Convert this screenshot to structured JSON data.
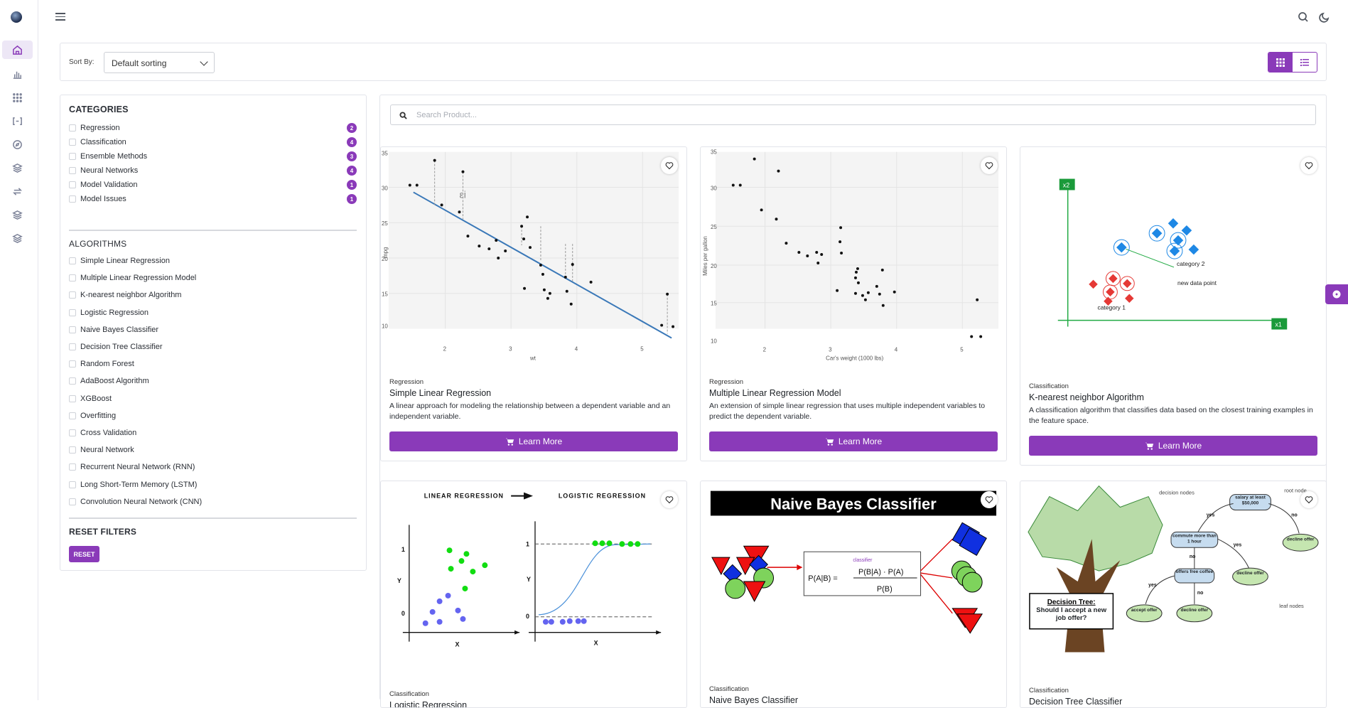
{
  "sort": {
    "label": "Sort By:",
    "value": "Default sorting"
  },
  "filters": {
    "categories_title": "CATEGORIES",
    "categories": [
      {
        "label": "Regression",
        "count": "2"
      },
      {
        "label": "Classification",
        "count": "4"
      },
      {
        "label": "Ensemble Methods",
        "count": "3"
      },
      {
        "label": "Neural Networks",
        "count": "4"
      },
      {
        "label": "Model Validation",
        "count": "1"
      },
      {
        "label": "Model Issues",
        "count": "1"
      }
    ],
    "algorithms_title": "ALGORITHMS",
    "algorithms": [
      "Simple Linear Regression",
      "Multiple Linear Regression Model",
      "K-nearest neighbor Algorithm",
      "Logistic Regression",
      "Naive Bayes Classifier",
      "Decision Tree Classifier",
      "Random Forest",
      "AdaBoost Algorithm",
      "XGBoost",
      "Overfitting",
      "Cross Validation",
      "Neural Network",
      "Recurrent Neural Network (RNN)",
      "Long Short-Term Memory (LSTM)",
      "Convolution Neural Network (CNN)"
    ],
    "reset_title": "RESET FILTERS",
    "reset_label": "RESET"
  },
  "search": {
    "placeholder": "Search Product..."
  },
  "products": [
    {
      "category": "Regression",
      "title": "Simple Linear Regression",
      "description": "A linear approach for modeling the relationship between a dependent variable and an independent variable.",
      "button": "Learn More",
      "figure": {
        "xlabel": "wt",
        "ylabel": "mpg",
        "annotation": "εi",
        "yticks": [
          "35",
          "30",
          "25",
          "20",
          "15",
          "10"
        ],
        "xticks": [
          "2",
          "3",
          "4",
          "5"
        ]
      }
    },
    {
      "category": "Regression",
      "title": "Multiple Linear Regression Model",
      "description": "An extension of simple linear regression that uses multiple independent variables to predict the dependent variable.",
      "button": "Learn More",
      "figure": {
        "xlabel": "Car's weight (1000 lbs)",
        "ylabel": "Miles per gallon",
        "yticks": [
          "35",
          "30",
          "25",
          "20",
          "15",
          "10"
        ],
        "xticks": [
          "2",
          "3",
          "4",
          "5"
        ]
      }
    },
    {
      "category": "Classification",
      "title": "K-nearest neighbor Algorithm",
      "description": "A classification algorithm that classifies data based on the closest training examples in the feature space.",
      "button": "Learn More",
      "figure": {
        "x2": "x2",
        "x1": "x1",
        "cat1": "category 1",
        "cat2": "category 2",
        "new_point": "new data point"
      }
    },
    {
      "category": "Classification",
      "title": "Logistic Regression",
      "figure": {
        "left_title": "LINEAR REGRESSION",
        "right_title": "LOGISTIC REGRESSION",
        "one": "1",
        "zero": "0",
        "ylab": "Y",
        "xlab": "X"
      }
    },
    {
      "category": "Classification",
      "title": "Naive Bayes Classifier",
      "figure": {
        "banner": "Naive Bayes Classifier",
        "classifier": "classifier",
        "lhs": "P(A|B) =",
        "num": "P(B|A) · P(A)",
        "den": "P(B)"
      }
    },
    {
      "category": "Classification",
      "title": "Decision Tree Classifier",
      "figure": {
        "decision_nodes": "decision nodes",
        "root_node": "root node",
        "leaf_nodes": "leaf nodes",
        "q_title": "Decision Tree:",
        "q_body": "Should I accept a new job offer?",
        "n_root": "salary at least $50,000",
        "n_commute": "commute more than 1 hour",
        "n_coffee": "offers free coffee",
        "l_decline1": "decline offer",
        "l_decline2": "decline offer",
        "l_decline3": "decline offer",
        "l_accept": "accept offer",
        "yes": "yes",
        "no": "no"
      }
    }
  ],
  "colors": {
    "accent": "#8a3ab9",
    "regression_line": "#3a78b8"
  }
}
